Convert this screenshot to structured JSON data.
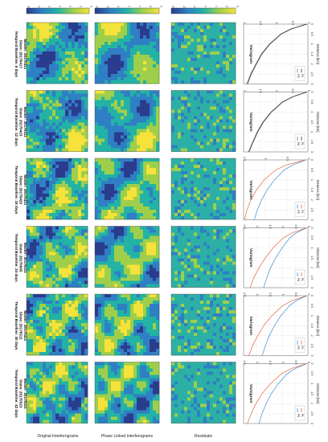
{
  "figure": {
    "row_labels": [
      "Original Interferograms",
      "Phase Linked Interferograms",
      "Residuals"
    ],
    "columns": [
      {
        "master": "Master: 20170411",
        "slave": "Slave: 20170417",
        "baseline": "Temporal Baseline: 6 days"
      },
      {
        "master": "Master: 20170411",
        "slave": "Slave: 20170423",
        "baseline": "Temporal Baseline: 12 days"
      },
      {
        "master": "Master: 20170411",
        "slave": "Slave: 20170429",
        "baseline": "Temporal Baseline: 18 days"
      },
      {
        "master": "Master: 20170411",
        "slave": "Slave: 20170505",
        "baseline": "Temporal Baseline: 24 days"
      },
      {
        "master": "Master: 20170411",
        "slave": "Slave: 20170511",
        "baseline": "Temporal Baseline: 30 days"
      },
      {
        "master": "Master: 20170411",
        "slave": "Slave: 20170523",
        "baseline": "Temporal Baseline: 42 days"
      }
    ],
    "colorbar_ticks": [
      "-3",
      "-2",
      "-1",
      "0",
      "1",
      "2",
      "3"
    ],
    "colors": {
      "low": "#2a3c8e",
      "mid_low": "#2f7fc4",
      "mid": "#22b3a5",
      "mid_high": "#9fcf4a",
      "high": "#f5e23a",
      "series_ps": "#3b8fd9",
      "series_pl": "#e8663b",
      "residual": "#2cb0a5"
    }
  },
  "chart_data": [
    {
      "type": "line",
      "title": "Variogram",
      "xlabel": "Distance [km]",
      "xticks": [
        "0",
        "0.5",
        "1",
        "1.5",
        "2",
        "2.5",
        "3"
      ],
      "yticks": [
        "0",
        "0.5",
        "1",
        "1.5",
        "2"
      ],
      "ylim": [
        0,
        2
      ],
      "xlim": [
        0,
        3
      ],
      "legend": [
        "PS",
        "PL"
      ],
      "series": [
        {
          "name": "PS",
          "x": [
            0,
            0.25,
            0.5,
            1,
            1.5,
            2,
            2.5,
            3
          ],
          "values": [
            0.05,
            0.55,
            0.85,
            1.2,
            1.45,
            1.62,
            1.78,
            1.9
          ]
        },
        {
          "name": "PL",
          "x": [
            0,
            0.25,
            0.5,
            1,
            1.5,
            2,
            2.5,
            3
          ],
          "values": [
            0.03,
            0.52,
            0.83,
            1.18,
            1.43,
            1.6,
            1.76,
            1.88
          ]
        }
      ]
    },
    {
      "type": "line",
      "title": "Variogram",
      "xlabel": "Distance [km]",
      "xticks": [
        "0",
        "0.5",
        "1",
        "1.5",
        "2",
        "2.5",
        "3"
      ],
      "yticks": [
        "0",
        "0.5",
        "1",
        "1.5",
        "2"
      ],
      "ylim": [
        0,
        2
      ],
      "xlim": [
        0,
        3
      ],
      "legend": [
        "PS",
        "PL"
      ],
      "series": [
        {
          "name": "PS",
          "x": [
            0,
            0.25,
            0.5,
            1,
            1.5,
            2,
            2.5,
            3
          ],
          "values": [
            0.05,
            0.5,
            0.8,
            1.15,
            1.4,
            1.58,
            1.72,
            1.85
          ]
        },
        {
          "name": "PL",
          "x": [
            0,
            0.25,
            0.5,
            1,
            1.5,
            2,
            2.5,
            3
          ],
          "values": [
            0.03,
            0.48,
            0.78,
            1.13,
            1.38,
            1.56,
            1.7,
            1.83
          ]
        }
      ]
    },
    {
      "type": "line",
      "title": "Variogram",
      "xlabel": "Distance [km]",
      "xticks": [
        "0",
        "0.5",
        "1",
        "1.5",
        "2",
        "2.5",
        "3"
      ],
      "yticks": [
        "0",
        "0.5",
        "1",
        "1.5"
      ],
      "ylim": [
        0,
        1.5
      ],
      "xlim": [
        0,
        3
      ],
      "legend": [
        "PS",
        "PL"
      ],
      "series": [
        {
          "name": "PS",
          "x": [
            0,
            0.25,
            0.5,
            1,
            1.5,
            2,
            2.5,
            3
          ],
          "values": [
            0.05,
            0.35,
            0.55,
            0.78,
            0.95,
            1.08,
            1.18,
            1.25
          ]
        },
        {
          "name": "PL",
          "x": [
            0,
            0.25,
            0.5,
            1,
            1.5,
            2,
            2.5,
            3
          ],
          "values": [
            0.05,
            0.5,
            0.75,
            1.02,
            1.2,
            1.33,
            1.42,
            1.48
          ]
        }
      ]
    },
    {
      "type": "line",
      "title": "Variogram",
      "xlabel": "Distance [km]",
      "xticks": [
        "0",
        "0.5",
        "1",
        "1.5",
        "2",
        "2.5",
        "3"
      ],
      "yticks": [
        "0",
        "0.5",
        "1",
        "1.5",
        "2",
        "2.5"
      ],
      "ylim": [
        0,
        2.5
      ],
      "xlim": [
        0,
        3
      ],
      "legend": [
        "PS",
        "PL"
      ],
      "series": [
        {
          "name": "PS",
          "x": [
            0,
            0.25,
            0.5,
            1,
            1.5,
            2,
            2.5,
            3
          ],
          "values": [
            0.05,
            0.45,
            0.7,
            1.0,
            1.25,
            1.45,
            1.6,
            1.72
          ]
        },
        {
          "name": "PL",
          "x": [
            0,
            0.25,
            0.5,
            1,
            1.5,
            2,
            2.5,
            3
          ],
          "values": [
            0.05,
            0.6,
            0.95,
            1.35,
            1.65,
            1.9,
            2.1,
            2.25
          ]
        }
      ]
    },
    {
      "type": "line",
      "title": "Variogram",
      "xlabel": "Distance [km]",
      "xticks": [
        "0",
        "0.5",
        "1",
        "1.5",
        "2",
        "2.5",
        "3"
      ],
      "yticks": [
        "0",
        "0.5",
        "1",
        "1.5",
        "2",
        "2.5"
      ],
      "ylim": [
        0,
        2.5
      ],
      "xlim": [
        0,
        3
      ],
      "legend": [
        "PS",
        "PL"
      ],
      "series": [
        {
          "name": "PS",
          "x": [
            0,
            0.25,
            0.5,
            1,
            1.5,
            2,
            2.5,
            3
          ],
          "values": [
            0.05,
            0.45,
            0.72,
            1.05,
            1.3,
            1.5,
            1.65,
            1.78
          ]
        },
        {
          "name": "PL",
          "x": [
            0,
            0.25,
            0.5,
            1,
            1.5,
            2,
            2.5,
            3
          ],
          "values": [
            0.05,
            0.62,
            0.98,
            1.4,
            1.72,
            1.95,
            2.15,
            2.3
          ]
        }
      ]
    },
    {
      "type": "line",
      "title": "Variogram",
      "xlabel": "Distance [km]",
      "xticks": [
        "0",
        "0.5",
        "1",
        "1.5",
        "2",
        "2.5",
        "3"
      ],
      "yticks": [
        "0",
        "0.5",
        "1",
        "1.5",
        "2",
        "2.5"
      ],
      "ylim": [
        0,
        2.5
      ],
      "xlim": [
        0,
        3
      ],
      "legend": [
        "PS",
        "PL"
      ],
      "series": [
        {
          "name": "PS",
          "x": [
            0,
            0.25,
            0.5,
            1,
            1.5,
            2,
            2.5,
            3
          ],
          "values": [
            0.05,
            0.5,
            0.8,
            1.15,
            1.42,
            1.62,
            1.78,
            1.9
          ]
        },
        {
          "name": "PL",
          "x": [
            0,
            0.25,
            0.5,
            1,
            1.5,
            2,
            2.5,
            3
          ],
          "values": [
            0.05,
            0.65,
            1.02,
            1.45,
            1.78,
            2.02,
            2.2,
            2.35
          ]
        }
      ]
    }
  ]
}
